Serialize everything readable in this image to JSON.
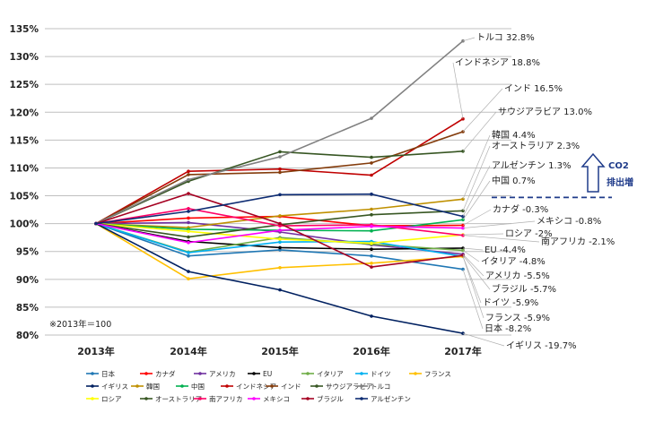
{
  "chart_data": {
    "type": "line",
    "x": [
      "2013年",
      "2014年",
      "2015年",
      "2016年",
      "2017年"
    ],
    "ylim": [
      80,
      135
    ],
    "yticks": [
      "80%",
      "85%",
      "90%",
      "95%",
      "100%",
      "105%",
      "110%",
      "115%",
      "120%",
      "125%",
      "130%",
      "135%"
    ],
    "note": "※2013年＝100",
    "co2_annotation": {
      "label_top": "CO2",
      "label_bottom": "排出増",
      "threshold": 104.7
    },
    "series": [
      {
        "name": "日本",
        "color": "#1f77b4",
        "values": [
          100,
          94.2,
          95.3,
          94.2,
          91.8
        ],
        "callout": "日本 -8.2%"
      },
      {
        "name": "カナダ",
        "color": "#ff0000",
        "values": [
          100,
          101.0,
          101.3,
          99.6,
          99.7
        ],
        "callout": "カナダ -0.3%"
      },
      {
        "name": "アメリカ",
        "color": "#7030a0",
        "values": [
          100,
          100.2,
          98.5,
          96.2,
          94.5
        ],
        "callout": "アメリカ -5.5%"
      },
      {
        "name": "EU",
        "color": "#000000",
        "values": [
          100,
          96.8,
          95.7,
          95.4,
          95.6
        ],
        "callout": "EU -4.4%"
      },
      {
        "name": "イタリア",
        "color": "#70ad47",
        "values": [
          100,
          94.9,
          97.5,
          96.3,
          95.2
        ],
        "callout": "イタリア -4.8%"
      },
      {
        "name": "ドイツ",
        "color": "#00b0f0",
        "values": [
          100,
          94.8,
          96.7,
          96.8,
          94.1
        ],
        "callout": "ドイツ -5.9%"
      },
      {
        "name": "フランス",
        "color": "#ffc000",
        "values": [
          100,
          90.1,
          92.1,
          92.9,
          94.1
        ],
        "callout": "フランス -5.9%"
      },
      {
        "name": "イギリス",
        "color": "#002060",
        "values": [
          100,
          91.4,
          88.1,
          83.4,
          80.3
        ],
        "callout": "イギリス -19.7%"
      },
      {
        "name": "韓国",
        "color": "#bf9000",
        "values": [
          100,
          99.3,
          101.4,
          102.6,
          104.4
        ],
        "callout": "韓国 4.4%"
      },
      {
        "name": "中国",
        "color": "#00b050",
        "values": [
          100,
          99.0,
          98.8,
          98.7,
          100.7
        ],
        "callout": "中国 0.7%"
      },
      {
        "name": "インドネシア",
        "color": "#c00000",
        "values": [
          100,
          109.4,
          109.8,
          108.7,
          118.8
        ],
        "callout": "インドネシア 18.8%"
      },
      {
        "name": "インド",
        "color": "#843c0c",
        "values": [
          100,
          108.8,
          109.2,
          110.9,
          116.5
        ],
        "callout": "インド 16.5%"
      },
      {
        "name": "サウジアラビア",
        "color": "#375623",
        "values": [
          100,
          107.6,
          112.9,
          111.9,
          113.0
        ],
        "callout": "サウジアラビア 13.0%"
      },
      {
        "name": "トルコ",
        "color": "#808080",
        "values": [
          100,
          107.9,
          112.0,
          118.9,
          132.8
        ],
        "callout": "トルコ 32.8%"
      },
      {
        "name": "ロシア",
        "color": "#ffff00",
        "values": [
          100,
          98.6,
          97.2,
          96.5,
          98.0
        ],
        "callout": "ロシア -2%"
      },
      {
        "name": "オーストラリア",
        "color": "#385723",
        "values": [
          100,
          97.6,
          99.8,
          101.6,
          102.3
        ],
        "callout": "オーストラリア 2.3%"
      },
      {
        "name": "南アフリカ",
        "color": "#ff0066",
        "values": [
          100,
          102.7,
          99.6,
          99.8,
          97.9
        ],
        "callout": "南アフリカ -2.1%"
      },
      {
        "name": "メキシコ",
        "color": "#ff00ff",
        "values": [
          100,
          96.6,
          98.8,
          99.5,
          99.2
        ],
        "callout": "メキシコ -0.8%"
      },
      {
        "name": "ブラジル",
        "color": "#a50021",
        "values": [
          100,
          105.4,
          100.0,
          92.2,
          94.3
        ],
        "callout": "ブラジル -5.7%"
      },
      {
        "name": "アルゼンチン",
        "color": "#0e2c73",
        "values": [
          100,
          102.2,
          105.2,
          105.3,
          101.3
        ],
        "callout": "アルゼンチン 1.3%"
      }
    ]
  }
}
